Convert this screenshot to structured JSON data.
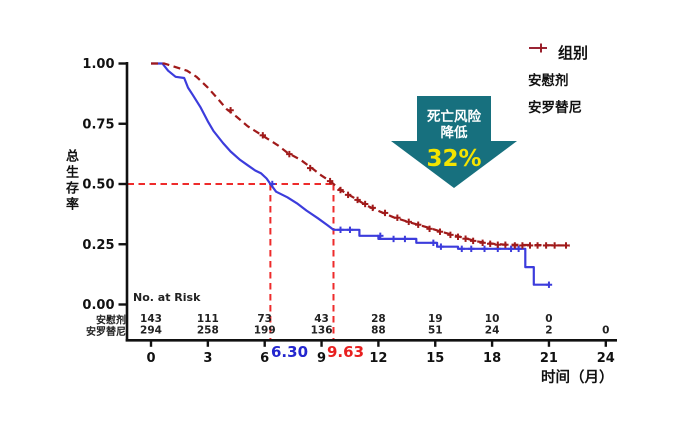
{
  "chart_data": {
    "type": "line",
    "subtype": "kaplan-meier-survival",
    "title": "",
    "xlabel": "时间（月）",
    "ylabel": "总生存率",
    "xlim": [
      0,
      24
    ],
    "ylim": [
      0,
      1
    ],
    "grid": false,
    "x_ticks": [
      0,
      3,
      6,
      9,
      12,
      15,
      18,
      21,
      24
    ],
    "y_ticks": [
      {
        "v": 1.0,
        "label": "1.00"
      },
      {
        "v": 0.75,
        "label": "0.75"
      },
      {
        "v": 0.5,
        "label": "0.50"
      },
      {
        "v": 0.25,
        "label": "0.25"
      },
      {
        "v": 0.0,
        "label": "0.00"
      }
    ],
    "legend": {
      "title": "组别",
      "position": "top-right"
    },
    "series": [
      {
        "name": "安慰剂",
        "color": "#3C3CDC",
        "line_style": "solid",
        "median_months": 6.3,
        "segments": [
          {
            "mode": "line",
            "points": [
              [
                0,
                1.0
              ],
              [
                0.6,
                1.0
              ],
              [
                0.9,
                0.97
              ],
              [
                1.3,
                0.945
              ],
              [
                1.75,
                0.94
              ],
              [
                1.95,
                0.9
              ],
              [
                2.2,
                0.87
              ],
              [
                2.6,
                0.82
              ],
              [
                3.0,
                0.76
              ],
              [
                3.3,
                0.72
              ],
              [
                3.8,
                0.67
              ],
              [
                4.2,
                0.635
              ],
              [
                4.7,
                0.6
              ],
              [
                5.1,
                0.578
              ],
              [
                5.5,
                0.556
              ],
              [
                5.8,
                0.545
              ],
              [
                6.1,
                0.523
              ],
              [
                6.3,
                0.5
              ],
              [
                6.6,
                0.468
              ],
              [
                7.2,
                0.445
              ],
              [
                7.7,
                0.42
              ],
              [
                8.2,
                0.39
              ],
              [
                8.8,
                0.358
              ],
              [
                9.3,
                0.33
              ],
              [
                9.63,
                0.31
              ]
            ]
          },
          {
            "mode": "step",
            "points": [
              [
                9.63,
                0.31
              ],
              [
                11.0,
                0.285
              ],
              [
                12.0,
                0.272
              ],
              [
                14.0,
                0.256
              ],
              [
                15.1,
                0.24
              ],
              [
                16.2,
                0.231
              ],
              [
                19.75,
                0.155
              ],
              [
                20.2,
                0.082
              ],
              [
                21.0,
                0.082
              ]
            ]
          }
        ],
        "censors": [
          [
            6.4,
            0.5
          ],
          [
            10.0,
            0.31
          ],
          [
            10.5,
            0.31
          ],
          [
            12.1,
            0.285
          ],
          [
            12.8,
            0.272
          ],
          [
            13.4,
            0.272
          ],
          [
            14.9,
            0.256
          ],
          [
            15.3,
            0.24
          ],
          [
            16.4,
            0.231
          ],
          [
            16.9,
            0.231
          ],
          [
            17.6,
            0.231
          ],
          [
            18.3,
            0.231
          ],
          [
            19.0,
            0.231
          ],
          [
            19.4,
            0.231
          ],
          [
            21.0,
            0.082
          ]
        ]
      },
      {
        "name": "安罗替尼",
        "color": "#A01A1A",
        "line_style": "dashed",
        "median_months": 9.63,
        "segments": [
          {
            "mode": "line",
            "points": [
              [
                0,
                1.0
              ],
              [
                0.7,
                1.0
              ],
              [
                1.9,
                0.97
              ],
              [
                2.4,
                0.945
              ],
              [
                3.0,
                0.9
              ],
              [
                3.5,
                0.856
              ],
              [
                4.0,
                0.81
              ],
              [
                4.5,
                0.78
              ],
              [
                5.1,
                0.74
              ],
              [
                5.6,
                0.715
              ],
              [
                6.1,
                0.69
              ],
              [
                6.7,
                0.66
              ],
              [
                7.2,
                0.63
              ],
              [
                7.9,
                0.6
              ],
              [
                8.5,
                0.565
              ],
              [
                9.0,
                0.535
              ],
              [
                9.45,
                0.512
              ],
              [
                9.63,
                0.5
              ],
              [
                10.0,
                0.475
              ],
              [
                10.7,
                0.443
              ],
              [
                11.4,
                0.41
              ],
              [
                12.1,
                0.385
              ],
              [
                12.8,
                0.362
              ],
              [
                13.7,
                0.34
              ],
              [
                14.6,
                0.32
              ],
              [
                15.4,
                0.3
              ],
              [
                16.3,
                0.281
              ],
              [
                17.2,
                0.262
              ],
              [
                18.1,
                0.252
              ],
              [
                18.7,
                0.248
              ],
              [
                22.1,
                0.245
              ]
            ]
          }
        ],
        "censors": [
          [
            4.2,
            0.806
          ],
          [
            5.9,
            0.702
          ],
          [
            7.3,
            0.624
          ],
          [
            8.4,
            0.566
          ],
          [
            9.45,
            0.512
          ],
          [
            10.0,
            0.475
          ],
          [
            10.4,
            0.455
          ],
          [
            10.9,
            0.434
          ],
          [
            11.3,
            0.417
          ],
          [
            11.7,
            0.401
          ],
          [
            12.35,
            0.38
          ],
          [
            13.0,
            0.36
          ],
          [
            13.6,
            0.343
          ],
          [
            14.1,
            0.331
          ],
          [
            14.7,
            0.314
          ],
          [
            15.25,
            0.302
          ],
          [
            15.8,
            0.289
          ],
          [
            16.2,
            0.281
          ],
          [
            16.6,
            0.273
          ],
          [
            17.0,
            0.264
          ],
          [
            17.5,
            0.256
          ],
          [
            17.9,
            0.252
          ],
          [
            18.3,
            0.248
          ],
          [
            18.7,
            0.248
          ],
          [
            19.2,
            0.245
          ],
          [
            19.6,
            0.245
          ],
          [
            20.0,
            0.245
          ],
          [
            20.4,
            0.245
          ],
          [
            20.85,
            0.245
          ],
          [
            21.3,
            0.245
          ],
          [
            21.9,
            0.245
          ]
        ]
      }
    ],
    "reference_lines": {
      "color": "#EE2B2B",
      "horizontal_y": 0.5,
      "verticals_months": [
        6.3,
        9.63
      ]
    },
    "median_labels": [
      {
        "text": "6.30",
        "color": "#2326CE"
      },
      {
        "text": "9.63",
        "color": "#E81F1F"
      }
    ],
    "risk_table": {
      "title": "No. at Risk",
      "rows": [
        {
          "label": "安慰剂",
          "values": [
            "143",
            "111",
            "73",
            "43",
            "28",
            "19",
            "10",
            "0"
          ]
        },
        {
          "label": "安罗替尼",
          "values": [
            "294",
            "258",
            "199",
            "136",
            "88",
            "51",
            "24",
            "2",
            "0"
          ]
        }
      ]
    },
    "callout": {
      "line1": "死亡风险",
      "line2": "降低",
      "value": "32%",
      "bg_color": "#17707E",
      "text_color": "#FFFFFF",
      "value_color": "#F4E400"
    },
    "axis_color": "#111111"
  }
}
